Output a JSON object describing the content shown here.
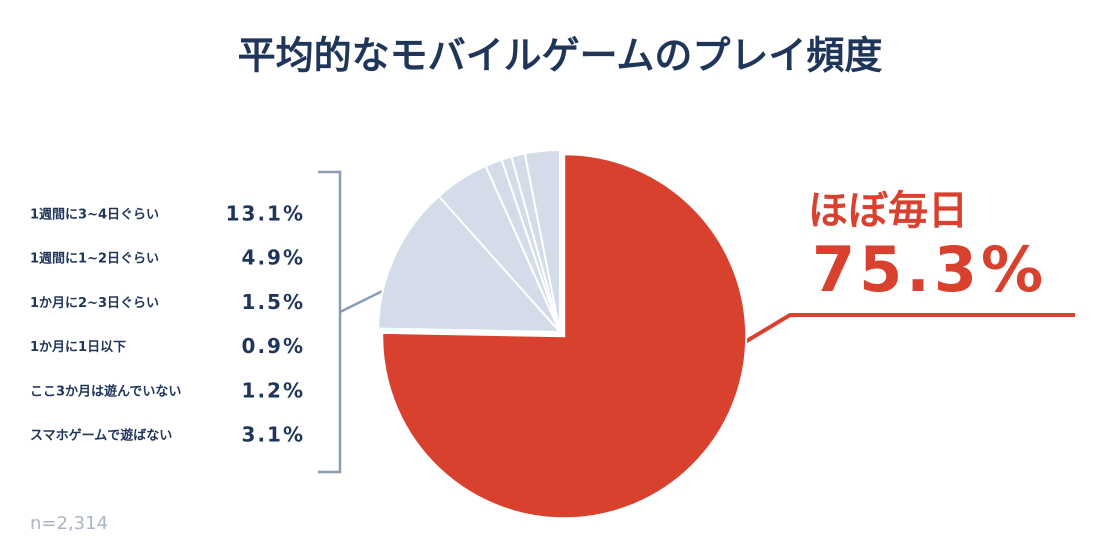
{
  "chart_data": {
    "type": "pie",
    "title": "平均的なモバイルゲームのプレイ頻度",
    "categories": [
      "ほぼ毎日",
      "1週間に3~4日ぐらい",
      "1週間に1~2日ぐらい",
      "1か月に2~3日ぐらい",
      "1か月に1日以下",
      "ここ3か月は遊んでいない",
      "スマホゲームで遊ばない"
    ],
    "values": [
      75.3,
      13.1,
      4.9,
      1.5,
      0.9,
      1.2,
      3.1
    ],
    "value_labels": [
      "75.3%",
      "13.1%",
      "4.9%",
      "1.5%",
      "0.9%",
      "1.2%",
      "3.1%"
    ],
    "colors": [
      "#d9412f",
      "#d3dce8",
      "#d3dce8",
      "#d3dce8",
      "#d3dce8",
      "#d3dce8",
      "#d3dce8"
    ],
    "note": "n=2,314"
  }
}
